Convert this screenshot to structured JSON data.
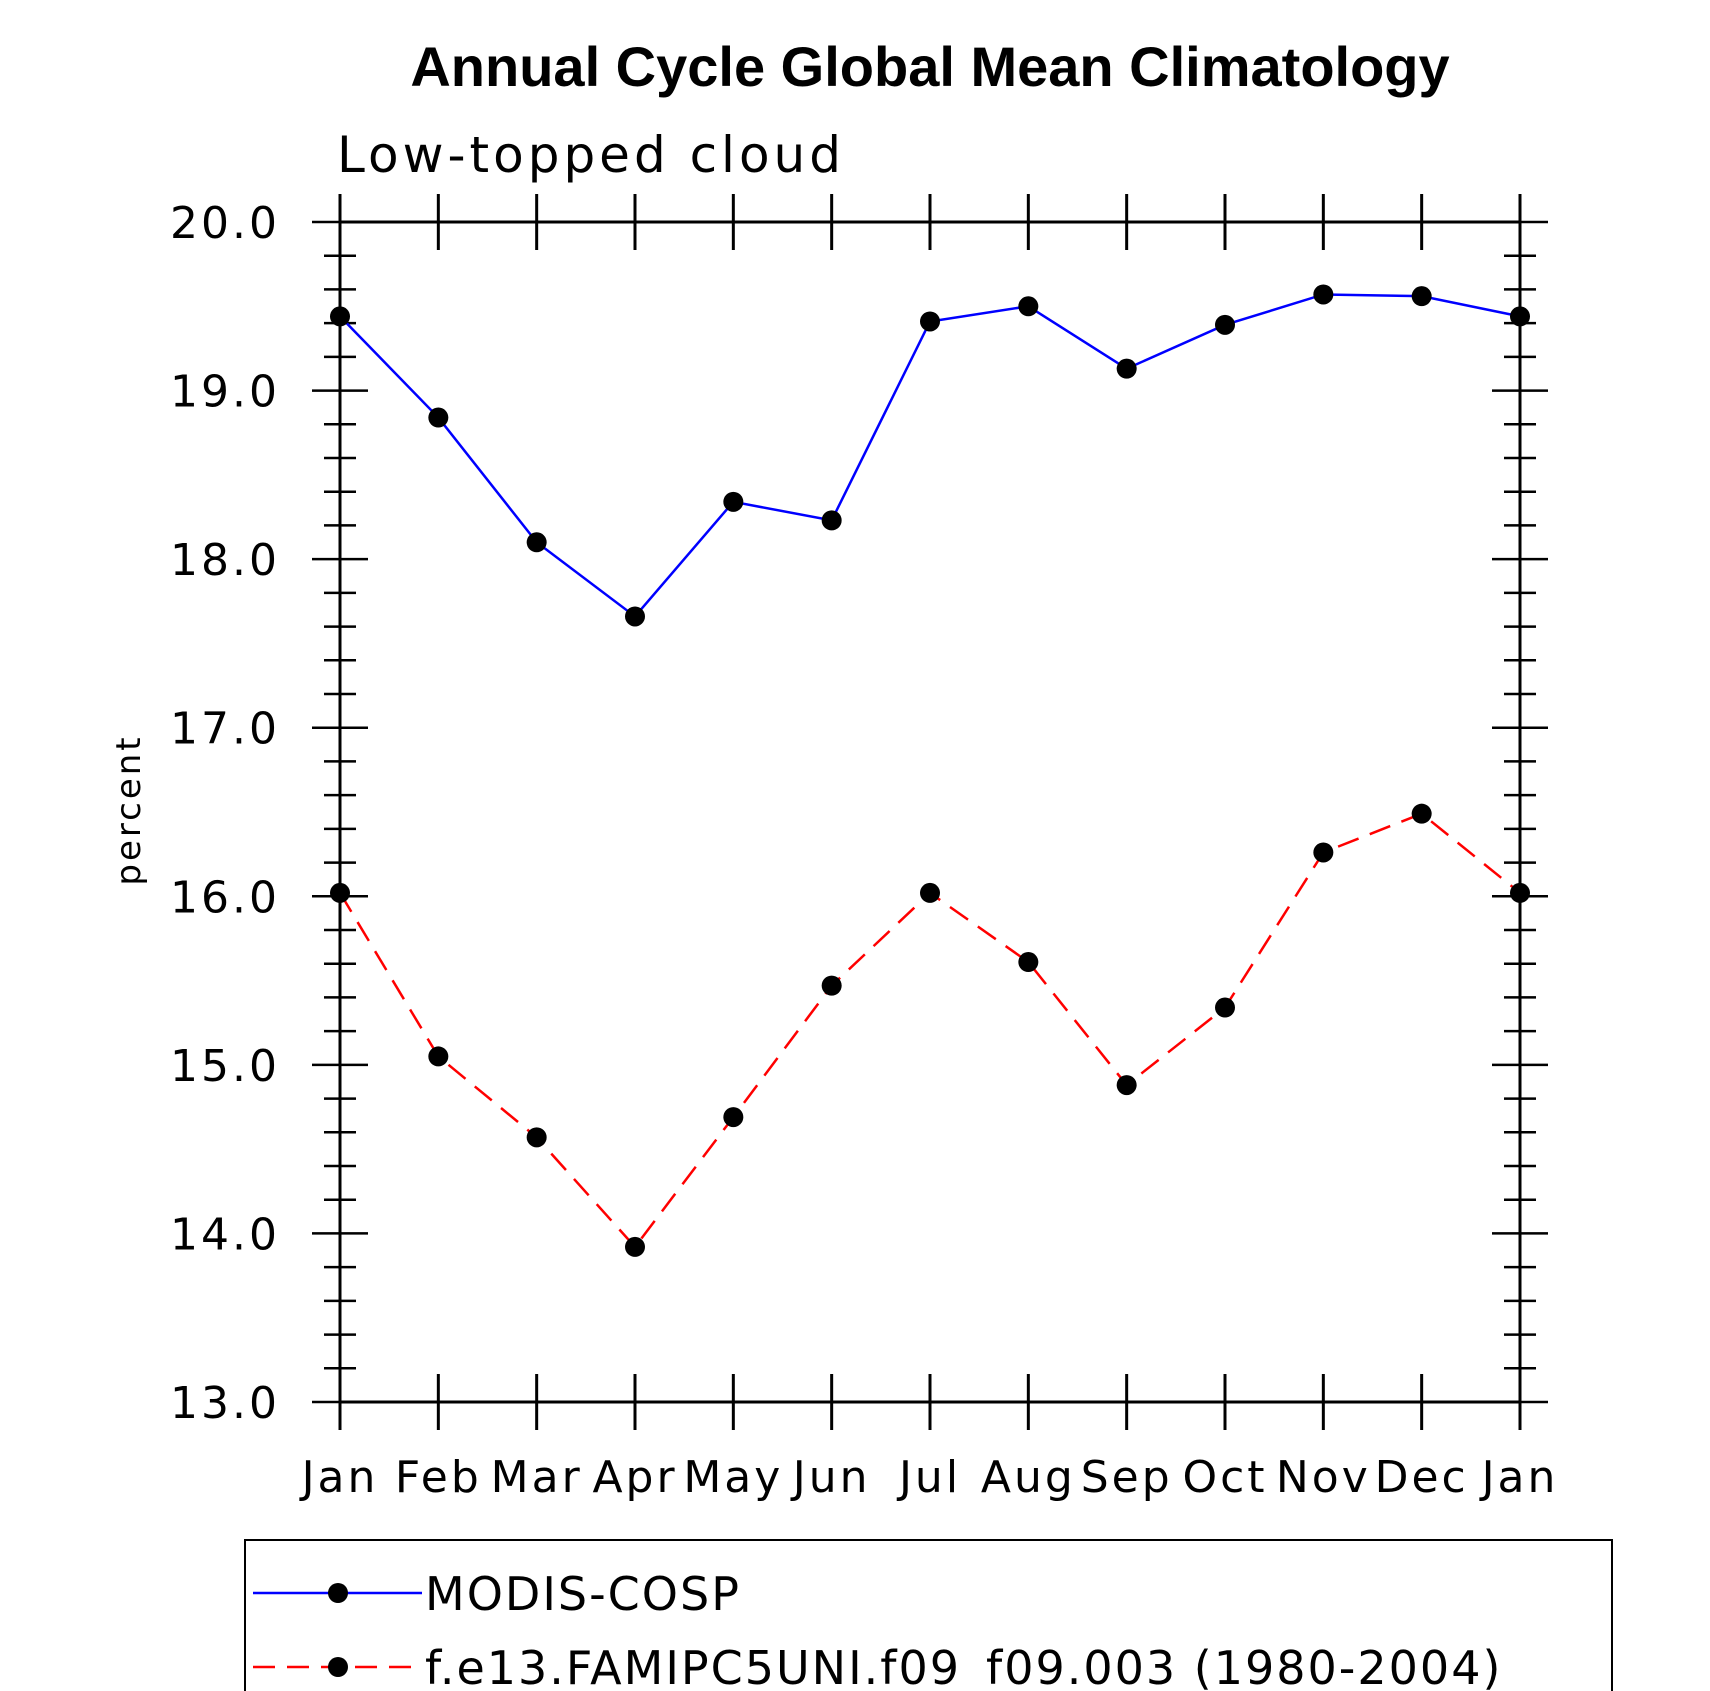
{
  "chart_data": {
    "type": "line",
    "title": "Annual Cycle Global Mean Climatology",
    "subtitle": "Low-topped cloud",
    "xlabel": "",
    "ylabel": "percent",
    "ylim": [
      13.0,
      20.0
    ],
    "yticks": [
      "13.0",
      "14.0",
      "15.0",
      "16.0",
      "17.0",
      "18.0",
      "19.0",
      "20.0"
    ],
    "categories": [
      "Jan",
      "Feb",
      "Mar",
      "Apr",
      "May",
      "Jun",
      "Jul",
      "Aug",
      "Sep",
      "Oct",
      "Nov",
      "Dec",
      "Jan"
    ],
    "series": [
      {
        "name": "MODIS-COSP",
        "color": "#0000ff",
        "dash": "solid",
        "marker": "filled-circle",
        "values": [
          19.44,
          18.84,
          18.1,
          17.66,
          18.34,
          18.23,
          19.41,
          19.5,
          19.13,
          19.39,
          19.57,
          19.56,
          19.44
        ]
      },
      {
        "name": "f.e13.FAMIPC5UNI.f09_f09.003 (1980-2004)",
        "color": "#ff0000",
        "dash": "dashed",
        "marker": "filled-circle",
        "values": [
          16.02,
          15.05,
          14.57,
          13.92,
          14.69,
          15.47,
          16.02,
          15.61,
          14.88,
          15.34,
          16.26,
          16.49,
          16.02
        ]
      }
    ],
    "legend_position": "bottom"
  }
}
